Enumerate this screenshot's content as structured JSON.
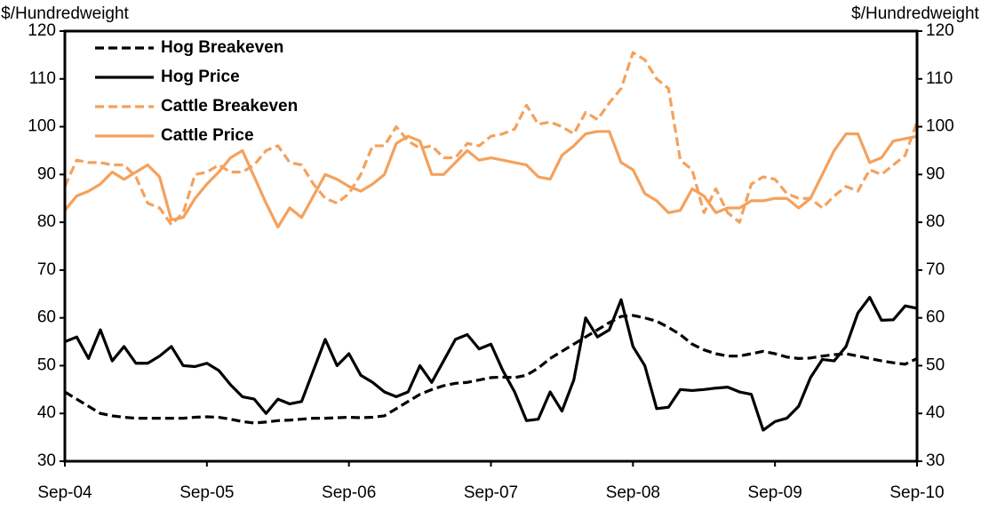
{
  "chart_data": {
    "type": "line",
    "y_label": "$/Hundredweight",
    "y2_label": "$/Hundredweight",
    "categories": [
      "Sep-04",
      null,
      null,
      null,
      null,
      null,
      null,
      null,
      null,
      null,
      null,
      null,
      "Sep-05",
      null,
      null,
      null,
      null,
      null,
      null,
      null,
      null,
      null,
      null,
      null,
      "Sep-06",
      null,
      null,
      null,
      null,
      null,
      null,
      null,
      null,
      null,
      null,
      null,
      "Sep-07",
      null,
      null,
      null,
      null,
      null,
      null,
      null,
      null,
      null,
      null,
      null,
      "Sep-08",
      null,
      null,
      null,
      null,
      null,
      null,
      null,
      null,
      null,
      null,
      null,
      "Sep-09",
      null,
      null,
      null,
      null,
      null,
      null,
      null,
      null,
      null,
      null,
      null,
      "Sep-10"
    ],
    "series": [
      {
        "name": "Hog Breakeven",
        "color": "#000000",
        "dashed": true,
        "values": [
          44.5,
          43,
          41.5,
          40,
          39.5,
          39.2,
          39,
          39,
          39,
          39,
          39,
          39.2,
          39.3,
          39.2,
          38.8,
          38.3,
          38,
          38.2,
          38.5,
          38.6,
          38.8,
          39,
          39,
          39.1,
          39.2,
          39.1,
          39.2,
          39.5,
          41,
          42.5,
          44,
          45,
          45.8,
          46.3,
          46.5,
          47,
          47.5,
          47.6,
          47.5,
          48,
          49.5,
          51.5,
          53,
          54.5,
          56,
          57.5,
          59,
          60.3,
          60.5,
          60,
          59.3,
          58,
          56.5,
          54.5,
          53.3,
          52.5,
          52,
          52,
          52.5,
          53,
          52.5,
          51.8,
          51.5,
          51.6,
          52,
          52.3,
          52.5,
          52,
          51.5,
          51,
          50.6,
          50.3,
          51.5
        ]
      },
      {
        "name": "Hog Price",
        "color": "#000000",
        "dashed": false,
        "values": [
          55,
          56,
          51.5,
          57.5,
          51,
          54,
          50.5,
          50.5,
          52,
          54,
          50,
          49.8,
          50.5,
          49,
          46,
          43.5,
          43,
          40,
          43,
          42,
          42.5,
          49,
          55.5,
          50,
          52.5,
          48,
          46.5,
          44.5,
          43.5,
          44.5,
          50,
          46.5,
          51,
          55.5,
          56.5,
          53.5,
          54.5,
          49,
          44.5,
          38.5,
          38.8,
          44.5,
          40.5,
          47,
          60,
          56,
          57.5,
          63.8,
          54,
          50,
          41,
          41.3,
          45,
          44.8,
          45,
          45.3,
          45.5,
          44.5,
          44,
          36.5,
          38.3,
          39,
          41.5,
          47.5,
          51.3,
          51,
          54,
          61,
          64.3,
          59.5,
          59.6,
          62.5,
          62
        ]
      },
      {
        "name": "Cattle Breakeven",
        "color": "#f4a15d",
        "dashed": true,
        "values": [
          87.5,
          93,
          92.5,
          92.5,
          92,
          92,
          89.5,
          84,
          83,
          79.5,
          82,
          90,
          90.5,
          92,
          90.5,
          90.5,
          92,
          95,
          96,
          92.5,
          92,
          88,
          85,
          84,
          86,
          90,
          96,
          96,
          100,
          97,
          95.5,
          96,
          93.5,
          93.5,
          96.5,
          96,
          98,
          98.5,
          99.5,
          104.5,
          100.5,
          101,
          100,
          98.5,
          103,
          101.5,
          105,
          108,
          115.5,
          114,
          110,
          108,
          93,
          91,
          82,
          87,
          82,
          80,
          88,
          89.5,
          89,
          86,
          85,
          85,
          83,
          85.5,
          87.5,
          86.5,
          91,
          90,
          92,
          94,
          101
        ]
      },
      {
        "name": "Cattle Price",
        "color": "#f4a15d",
        "dashed": false,
        "values": [
          82.5,
          85.5,
          86.5,
          88,
          90.5,
          89,
          90.5,
          92,
          89.5,
          80.5,
          81,
          85,
          88,
          90.5,
          93.5,
          95,
          89.5,
          84,
          79,
          83,
          81,
          85.5,
          90,
          89,
          87.5,
          86.5,
          88,
          90,
          96.5,
          98,
          97,
          90,
          90,
          92.5,
          95,
          93,
          93.5,
          93,
          92.5,
          92,
          89.5,
          89,
          94,
          96,
          98.5,
          99,
          99,
          92.5,
          91,
          86,
          84.5,
          82,
          82.5,
          87,
          85.5,
          82,
          83,
          83,
          84.5,
          84.5,
          85,
          85,
          83,
          85,
          90,
          95,
          98.5,
          98.5,
          92.5,
          93.5,
          97,
          97.5,
          98
        ]
      }
    ],
    "ylim": [
      30,
      120
    ],
    "yticks": [
      30,
      40,
      50,
      60,
      70,
      80,
      90,
      100,
      110,
      120
    ],
    "y2lim": [
      30,
      120
    ],
    "y2ticks": [
      30,
      40,
      50,
      60,
      70,
      80,
      90,
      100,
      110,
      120
    ],
    "grid": false,
    "legend": "top-left"
  }
}
